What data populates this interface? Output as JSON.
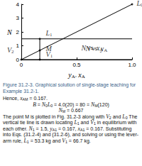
{
  "chart_data": {
    "type": "line",
    "x_label": [
      {
        "v": "y",
        "sub": "A"
      },
      ", ",
      {
        "v": "x",
        "sub": "A"
      }
    ],
    "y_label": [
      {
        "v": "N"
      }
    ],
    "xlim": [
      0,
      1.0
    ],
    "xticks": [
      0,
      0.5,
      {
        "value": 1.0,
        "label": "1.0"
      }
    ],
    "ylim": [
      0,
      4
    ],
    "yticks": [
      0,
      1,
      2,
      3,
      4
    ],
    "color": "#000000",
    "series": [
      {
        "x": [
          0,
          1.0
        ],
        "values": [
          1.5,
          1.5
        ]
      },
      {
        "x": [
          0,
          1.0
        ],
        "values": [
          0,
          0
        ]
      },
      {
        "x": [
          0.167,
          0.167
        ],
        "values": [
          0,
          1.5
        ]
      },
      {
        "x": [
          0,
          1.0
        ],
        "values": [
          0,
          4.0
        ]
      }
    ],
    "points": [
      {
        "label": [
          {
            "v": "L",
            "sub": "0"
          }
        ],
        "x": 1.0,
        "y": 4.0
      },
      {
        "label": [
          {
            "v": "L",
            "sub": "1"
          }
        ],
        "x": 0.167,
        "y": 1.5
      },
      {
        "label": [
          {
            "v": "M"
          }
        ],
        "x": 0.167,
        "y": 0.667
      },
      {
        "label": [
          {
            "v": "V",
            "sub": "1"
          }
        ],
        "x": 0.167,
        "y": 0
      },
      {
        "label": [
          {
            "v": "V",
            "sub": "2"
          }
        ],
        "x": 0,
        "y": 0
      }
    ],
    "annotations": [
      {
        "text": [
          {
            "v": "N"
          },
          " vs. ",
          {
            "v": "y",
            "sub": "A"
          }
        ],
        "x": 0.55,
        "y": 1.5
      },
      {
        "text": [
          {
            "v": "N"
          },
          " vs. ",
          {
            "v": "x",
            "sub": "A"
          }
        ],
        "x": 0.5,
        "y": 0
      }
    ]
  },
  "caption": "Figure 31.2-3. Graphical solution of single-stage leaching for Example 31.2-1.",
  "paragraphs": [
    {
      "align": "left",
      "runs": [
        "Hence, ",
        {
          "v": "x",
          "sub": "AM"
        },
        " = 0.167."
      ]
    },
    {
      "align": "center",
      "runs": [
        {
          "v": "B"
        },
        " = ",
        {
          "v": "N",
          "sub": "0"
        },
        {
          "v": "L",
          "sub": "0"
        },
        " = 4.0(20) = 80 = ",
        {
          "v": "N",
          "sub": "M"
        },
        "(120)"
      ]
    },
    {
      "align": "center",
      "runs": [
        {
          "v": "N",
          "sub": "M"
        },
        " = 0.667"
      ]
    },
    {
      "align": "left",
      "runs": [
        "The point M is plotted in Fig. 31.2-3 along with ",
        {
          "v": "V",
          "sub": "2"
        },
        " and ",
        {
          "v": "L",
          "sub": "0"
        },
        " The vertical tie line is drawn locating ",
        {
          "v": "L",
          "sub": "1"
        },
        " and ",
        {
          "v": "V",
          "sub": "1"
        },
        " in equilibrium with each other. ",
        {
          "v": "N",
          "sub": "1"
        },
        " = 1.5, ",
        {
          "v": "y",
          "sub": "A1"
        },
        " = 0.167, ",
        {
          "v": "x",
          "sub": "A1"
        },
        " = 0.167. Substituting into Eqs. (31.2-4) and (31.2-6), and solving or using the lever-arm rule, ",
        {
          "v": "L",
          "sub": "1"
        },
        " = 53.3 kg and ",
        {
          "v": "V",
          "sub": "1"
        },
        " = 66.7 kg."
      ]
    }
  ]
}
